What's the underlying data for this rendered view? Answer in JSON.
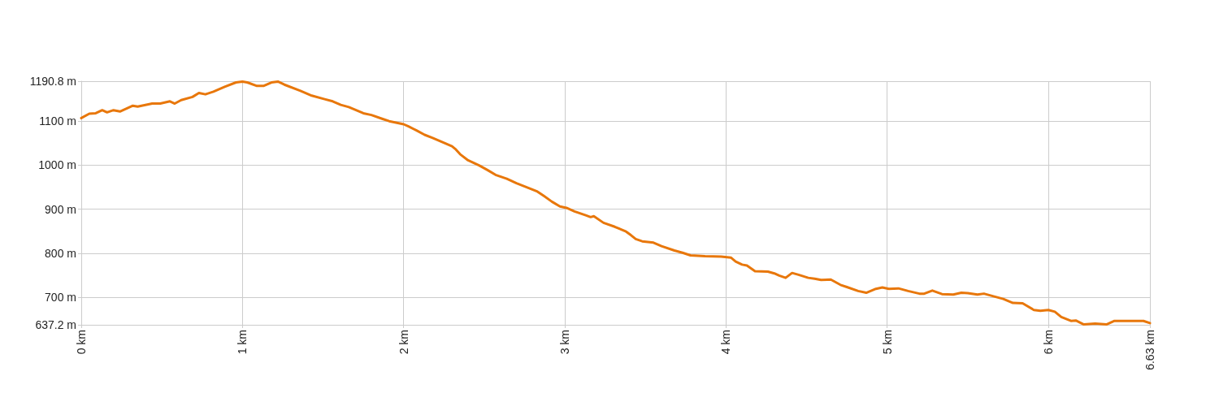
{
  "chart_data": {
    "type": "line",
    "color": "#e8770b",
    "marker": "none",
    "grid": true,
    "xlim": [
      0,
      6.63
    ],
    "xticks": [
      {
        "value": 0,
        "label": "0 km"
      },
      {
        "value": 1,
        "label": "1 km"
      },
      {
        "value": 2,
        "label": "2 km"
      },
      {
        "value": 3,
        "label": "3 km"
      },
      {
        "value": 4,
        "label": "4 km"
      },
      {
        "value": 5,
        "label": "5 km"
      },
      {
        "value": 6,
        "label": "6 km"
      },
      {
        "value": 6.63,
        "label": "6.63 km"
      }
    ],
    "ylim": [
      637.2,
      1190.8
    ],
    "yticks": [
      {
        "value": 637.2,
        "label": "637.2 m"
      },
      {
        "value": 700,
        "label": "700 m"
      },
      {
        "value": 800,
        "label": "800 m"
      },
      {
        "value": 900,
        "label": "900 m"
      },
      {
        "value": 1000,
        "label": "1000 m"
      },
      {
        "value": 1100,
        "label": "1100 m"
      },
      {
        "value": 1190.8,
        "label": "1190.8 m"
      }
    ],
    "x": [
      0,
      0.05,
      0.09,
      0.13,
      0.16,
      0.2,
      0.24,
      0.32,
      0.35,
      0.44,
      0.49,
      0.55,
      0.58,
      0.62,
      0.69,
      0.73,
      0.77,
      0.82,
      0.89,
      0.96,
      1.0,
      1.03,
      1.09,
      1.13,
      1.18,
      1.22,
      1.26,
      1.36,
      1.43,
      1.51,
      1.56,
      1.61,
      1.66,
      1.75,
      1.8,
      1.87,
      1.91,
      2.0,
      2.03,
      2.08,
      2.13,
      2.18,
      2.23,
      2.3,
      2.32,
      2.35,
      2.4,
      2.47,
      2.52,
      2.57,
      2.64,
      2.7,
      2.77,
      2.83,
      2.87,
      2.92,
      2.97,
      3.01,
      3.06,
      3.13,
      3.16,
      3.18,
      3.24,
      3.31,
      3.38,
      3.41,
      3.44,
      3.48,
      3.55,
      3.6,
      3.68,
      3.73,
      3.78,
      3.87,
      3.97,
      4.03,
      4.06,
      4.1,
      4.13,
      4.18,
      4.26,
      4.3,
      4.33,
      4.37,
      4.41,
      4.45,
      4.51,
      4.55,
      4.59,
      4.65,
      4.71,
      4.75,
      4.82,
      4.87,
      4.93,
      4.97,
      5.01,
      5.07,
      5.13,
      5.2,
      5.23,
      5.28,
      5.34,
      5.41,
      5.46,
      5.5,
      5.56,
      5.6,
      5.65,
      5.72,
      5.78,
      5.84,
      5.91,
      5.95,
      6.0,
      6.04,
      6.08,
      6.14,
      6.17,
      6.22,
      6.29,
      6.36,
      6.41,
      6.5,
      6.59,
      6.63
    ],
    "values": [
      1107,
      1117,
      1118,
      1125,
      1120,
      1125,
      1122,
      1135,
      1133,
      1140,
      1140,
      1145,
      1140,
      1148,
      1155,
      1164,
      1161,
      1167,
      1178,
      1188,
      1190,
      1188,
      1180,
      1180,
      1188,
      1190,
      1183,
      1169,
      1158,
      1150,
      1145,
      1137,
      1132,
      1118,
      1114,
      1105,
      1100,
      1093,
      1088,
      1079,
      1069,
      1062,
      1054,
      1043,
      1037,
      1025,
      1011,
      999,
      989,
      978,
      969,
      959,
      949,
      940,
      930,
      917,
      906,
      903,
      895,
      886,
      882,
      884,
      869,
      860,
      849,
      841,
      832,
      827,
      824,
      816,
      806,
      801,
      795,
      793,
      792,
      790,
      781,
      774,
      772,
      759,
      758,
      754,
      749,
      744,
      755,
      751,
      744,
      742,
      739,
      740,
      728,
      723,
      714,
      710,
      719,
      722,
      719,
      720,
      714,
      708,
      708,
      715,
      707,
      706,
      710,
      709,
      706,
      708,
      703,
      696,
      687,
      686,
      671,
      669,
      671,
      667,
      655,
      646,
      647,
      638,
      640,
      638,
      646,
      646,
      646,
      641
    ]
  }
}
